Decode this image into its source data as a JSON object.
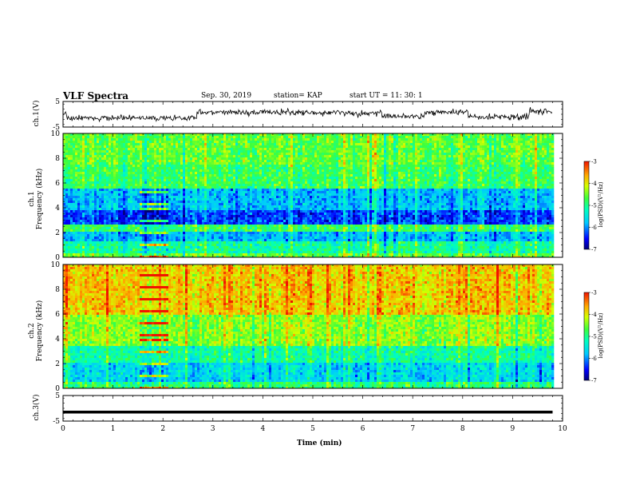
{
  "header": {
    "title": "VLF Spectra",
    "date": "Sep. 30, 2019",
    "station": "station= KAP",
    "start_ut": "start  UT =   11: 30: 1"
  },
  "chart_data": [
    {
      "type": "line",
      "name": "ch1-waveform",
      "ylabel": "ch.1(V)",
      "ylim": [
        -5,
        5
      ],
      "yticks": [
        "5",
        "-5"
      ],
      "xlim": [
        0,
        10
      ],
      "note_shape": "noisy waveform fluctuating between about -3 and 3 V"
    },
    {
      "type": "heatmap",
      "name": "ch1-spectrogram",
      "ylabel": "ch.1\nFrequency  (kHz)",
      "ylabel_line1": "ch.1",
      "ylabel_line2": "Frequency  (kHz)",
      "ylim": [
        0,
        10
      ],
      "yticks": [
        "0",
        "2",
        "4",
        "6",
        "8",
        "10"
      ],
      "xlim": [
        0,
        10
      ],
      "colorbar": {
        "label": "log(PSD)(V²/Hz)",
        "ticks": [
          "-3",
          "-4",
          "-5",
          "-6",
          "-7"
        ],
        "range": [
          -7,
          -3
        ]
      },
      "bands": [
        {
          "f_low": 0.0,
          "f_high": 0.3,
          "level": -4.6
        },
        {
          "f_low": 0.3,
          "f_high": 1.2,
          "level": -5.1
        },
        {
          "f_low": 1.2,
          "f_high": 2.0,
          "level": -5.8
        },
        {
          "f_low": 2.0,
          "f_high": 2.6,
          "level": -4.8
        },
        {
          "f_low": 2.6,
          "f_high": 3.8,
          "level": -6.3
        },
        {
          "f_low": 3.8,
          "f_high": 5.5,
          "level": -5.8
        },
        {
          "f_low": 5.5,
          "f_high": 7.5,
          "level": -4.8
        },
        {
          "f_low": 7.5,
          "f_high": 10.0,
          "level": -4.6
        }
      ],
      "burst": {
        "t_start": 1.5,
        "t_end": 2.1,
        "f_high": 5.5
      }
    },
    {
      "type": "heatmap",
      "name": "ch2-spectrogram",
      "ylabel": "ch.2\nFrequency  (kHz)",
      "ylabel_line1": "ch.2",
      "ylabel_line2": "Frequency  (kHz)",
      "ylim": [
        0,
        10
      ],
      "yticks": [
        "0",
        "2",
        "4",
        "6",
        "8",
        "10"
      ],
      "xlim": [
        0,
        10
      ],
      "colorbar": {
        "label": "log(PSD)(V²/Hz)",
        "ticks": [
          "-3",
          "-4",
          "-5",
          "-6",
          "-7"
        ],
        "range": [
          -7,
          -3
        ]
      },
      "bands": [
        {
          "f_low": 0.0,
          "f_high": 0.6,
          "level": -4.9
        },
        {
          "f_low": 0.6,
          "f_high": 2.0,
          "level": -5.6
        },
        {
          "f_low": 2.0,
          "f_high": 3.5,
          "level": -5.1
        },
        {
          "f_low": 3.5,
          "f_high": 6.0,
          "level": -4.4
        },
        {
          "f_low": 6.0,
          "f_high": 10.0,
          "level": -3.8
        }
      ],
      "burst": {
        "t_start": 1.5,
        "t_end": 2.1,
        "f_high": 9.5
      }
    },
    {
      "type": "line",
      "name": "ch3-waveform",
      "ylabel": "ch.3(V)",
      "ylim": [
        -5,
        5
      ],
      "yticks": [
        "5",
        "-5"
      ],
      "xlim": [
        0,
        10
      ],
      "level": -1.5
    }
  ],
  "xaxis": {
    "label": "Time  (min)",
    "ticks": [
      "0",
      "1",
      "2",
      "3",
      "4",
      "5",
      "6",
      "7",
      "8",
      "9",
      "10"
    ],
    "data_end": 9.8
  }
}
